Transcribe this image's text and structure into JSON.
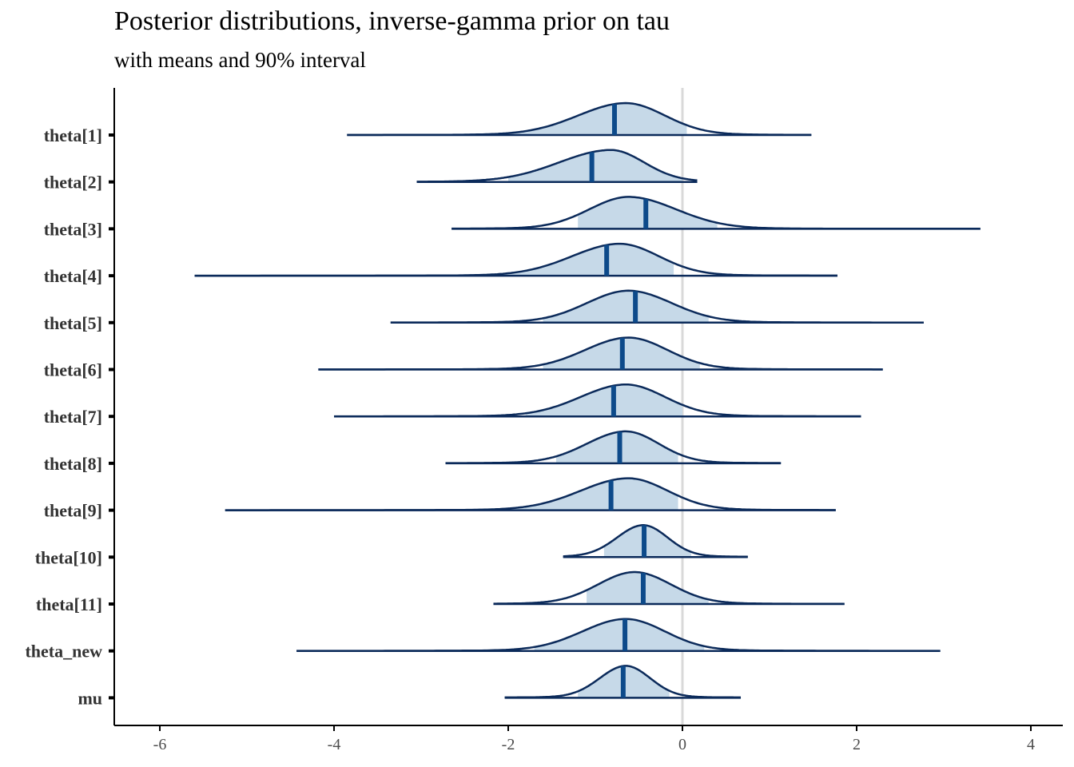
{
  "chart_data": {
    "type": "ridgeline",
    "title": "Posterior distributions, inverse-gamma prior on tau",
    "subtitle": "with means and 90% interval",
    "xlabel": "",
    "ylabel": "",
    "xlim": [
      -6.6,
      4.3
    ],
    "xticks": [
      -6,
      -4,
      -2,
      0,
      2,
      4
    ],
    "reference_line_x": 0,
    "fill_color": "#c6d9e8",
    "line_color": "#0b2a5a",
    "mean_color": "#0d4a8a",
    "series": [
      {
        "label": "theta[1]",
        "mean": -0.78,
        "mode": -0.65,
        "interval_90": [
          -1.95,
          0.05
        ],
        "range": [
          -3.85,
          1.48
        ],
        "sd_left": 0.55,
        "sd_right": 0.45
      },
      {
        "label": "theta[2]",
        "mean": -1.04,
        "mode": -0.82,
        "interval_90": [
          -2.0,
          0.0
        ],
        "range": [
          -3.05,
          0.17
        ],
        "sd_left": 0.6,
        "sd_right": 0.38
      },
      {
        "label": "theta[3]",
        "mean": -0.42,
        "mode": -0.62,
        "interval_90": [
          -1.2,
          0.4
        ],
        "range": [
          -2.65,
          3.42
        ],
        "sd_left": 0.45,
        "sd_right": 0.55
      },
      {
        "label": "theta[4]",
        "mean": -0.87,
        "mode": -0.72,
        "interval_90": [
          -2.1,
          -0.1
        ],
        "range": [
          -5.6,
          1.78
        ],
        "sd_left": 0.55,
        "sd_right": 0.45
      },
      {
        "label": "theta[5]",
        "mean": -0.54,
        "mode": -0.62,
        "interval_90": [
          -1.6,
          0.3
        ],
        "range": [
          -3.35,
          2.77
        ],
        "sd_left": 0.48,
        "sd_right": 0.5
      },
      {
        "label": "theta[6]",
        "mean": -0.69,
        "mode": -0.62,
        "interval_90": [
          -1.6,
          0.2
        ],
        "range": [
          -4.18,
          2.3
        ],
        "sd_left": 0.5,
        "sd_right": 0.45
      },
      {
        "label": "theta[7]",
        "mean": -0.79,
        "mode": -0.65,
        "interval_90": [
          -1.8,
          0.0
        ],
        "range": [
          -4.0,
          2.05
        ],
        "sd_left": 0.52,
        "sd_right": 0.45
      },
      {
        "label": "theta[8]",
        "mean": -0.72,
        "mode": -0.65,
        "interval_90": [
          -1.45,
          -0.05
        ],
        "range": [
          -2.72,
          1.13
        ],
        "sd_left": 0.45,
        "sd_right": 0.38
      },
      {
        "label": "theta[9]",
        "mean": -0.82,
        "mode": -0.62,
        "interval_90": [
          -2.0,
          -0.05
        ],
        "range": [
          -5.25,
          1.76
        ],
        "sd_left": 0.55,
        "sd_right": 0.45
      },
      {
        "label": "theta[10]",
        "mean": -0.44,
        "mode": -0.45,
        "interval_90": [
          -0.9,
          0.1
        ],
        "range": [
          -1.37,
          0.75
        ],
        "sd_left": 0.3,
        "sd_right": 0.28
      },
      {
        "label": "theta[11]",
        "mean": -0.45,
        "mode": -0.55,
        "interval_90": [
          -1.1,
          0.3
        ],
        "range": [
          -2.17,
          1.86
        ],
        "sd_left": 0.42,
        "sd_right": 0.42
      },
      {
        "label": "theta_new",
        "mean": -0.66,
        "mode": -0.65,
        "interval_90": [
          -1.7,
          0.25
        ],
        "range": [
          -4.43,
          2.96
        ],
        "sd_left": 0.5,
        "sd_right": 0.45
      },
      {
        "label": "mu",
        "mean": -0.68,
        "mode": -0.65,
        "interval_90": [
          -1.2,
          -0.15
        ],
        "range": [
          -2.04,
          0.67
        ],
        "sd_left": 0.3,
        "sd_right": 0.28
      }
    ]
  }
}
